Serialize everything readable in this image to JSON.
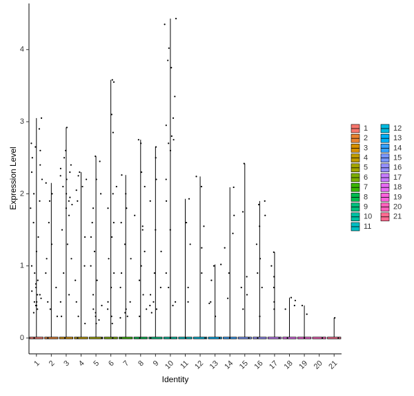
{
  "chart_data": {
    "type": "violin",
    "x_label": "Identity",
    "y_label": "Expression Level",
    "categories": [
      "1",
      "2",
      "3",
      "4",
      "5",
      "6",
      "7",
      "8",
      "9",
      "10",
      "11",
      "12",
      "13",
      "14",
      "15",
      "16",
      "17",
      "18",
      "19",
      "20",
      "21"
    ],
    "series": [
      {
        "name": "1",
        "color": "#F8766D",
        "values": [
          3.05,
          2.9,
          2.7,
          2.65,
          2.6,
          2.5,
          2.4,
          2.3,
          2.2,
          2.0,
          1.9,
          1.8,
          1.6,
          1.4,
          1.2,
          1.0,
          0.9,
          0.8,
          0.75,
          0.7,
          0.65,
          0.6,
          0.55,
          0.5,
          0.45,
          0.4,
          0.35,
          0.6,
          0.5,
          0.45,
          0
        ]
      },
      {
        "name": "2",
        "color": "#EA8331",
        "values": [
          2.15,
          2.0,
          1.9,
          1.6,
          1.3,
          1.1,
          0.9,
          0.7,
          0.5,
          0.4,
          0.3,
          0
        ]
      },
      {
        "name": "3",
        "color": "#D89000",
        "values": [
          2.92,
          2.6,
          2.5,
          2.4,
          2.35,
          2.3,
          2.25,
          2.2,
          2.1,
          2.0,
          1.95,
          1.9,
          1.85,
          1.8,
          1.7,
          1.5,
          1.3,
          1.1,
          0.9,
          0.6,
          0.5,
          0.3,
          0
        ]
      },
      {
        "name": "4",
        "color": "#C09B00",
        "values": [
          2.3,
          2.25,
          2.2,
          2.1,
          2.05,
          1.9,
          1.4,
          1.0,
          0.8,
          0.5,
          0.3,
          0.2,
          0
        ]
      },
      {
        "name": "5",
        "color": "#A3A500",
        "values": [
          2.52,
          2.45,
          2.2,
          2.0,
          1.8,
          1.6,
          1.4,
          1.2,
          1.0,
          0.8,
          0.6,
          0.45,
          0.4,
          0.35,
          0.3,
          0.25,
          0.2,
          0
        ]
      },
      {
        "name": "6",
        "color": "#7CAE00",
        "values": [
          3.58,
          3.55,
          3.1,
          2.85,
          2.1,
          2.0,
          1.8,
          1.6,
          1.4,
          1.1,
          0.9,
          0.7,
          0.5,
          0.4,
          0.3,
          0.2,
          0
        ]
      },
      {
        "name": "7",
        "color": "#39B600",
        "values": [
          2.26,
          2.0,
          1.8,
          1.6,
          1.3,
          1.1,
          0.9,
          0.7,
          0.5,
          0.4,
          0.35,
          0.3,
          0.28,
          0
        ]
      },
      {
        "name": "8",
        "color": "#00BB4E",
        "values": [
          2.75,
          2.7,
          2.3,
          2.1,
          1.7,
          1.55,
          1.5,
          1.2,
          1.0,
          0.8,
          0.6,
          0.4,
          0.3,
          0
        ]
      },
      {
        "name": "9",
        "color": "#00BF7D",
        "values": [
          2.65,
          2.5,
          2.2,
          1.9,
          1.5,
          1.2,
          0.9,
          0.7,
          0.6,
          0.5,
          0.45,
          0.4,
          0.35,
          0
        ]
      },
      {
        "name": "10",
        "color": "#00C1A3",
        "values": [
          4.43,
          4.35,
          4.02,
          3.85,
          3.75,
          3.35,
          3.05,
          2.95,
          2.8,
          2.75,
          2.7,
          2.6,
          2.2,
          1.9,
          1.5,
          0.9,
          0.7,
          0.5,
          0.45,
          0
        ]
      },
      {
        "name": "11",
        "color": "#00BFC4",
        "values": [
          1.93,
          1.6,
          1.3,
          0.7,
          0.5,
          0
        ]
      },
      {
        "name": "12",
        "color": "#00BAE0",
        "values": [
          2.24,
          2.1,
          1.55,
          1.25,
          0.9,
          0
        ]
      },
      {
        "name": "13",
        "color": "#00B0F6",
        "values": [
          1.02,
          1.0,
          0.8,
          0.5,
          0.48,
          0.3,
          0
        ]
      },
      {
        "name": "14",
        "color": "#35A2FF",
        "values": [
          2.09,
          1.7,
          1.45,
          1.25,
          0.9,
          0.55,
          0
        ]
      },
      {
        "name": "15",
        "color": "#7997FF",
        "values": [
          2.42,
          1.75,
          0.85,
          0.7,
          0.4,
          0.6,
          0
        ]
      },
      {
        "name": "16",
        "color": "#9590FF",
        "values": [
          1.9,
          1.85,
          1.7,
          1.55,
          1.3,
          1.1,
          0.9,
          0.7,
          0.3,
          0
        ]
      },
      {
        "name": "17",
        "color": "#C77CFF",
        "values": [
          1.19,
          1.0,
          0.85,
          0.7,
          0.5,
          0.4,
          0
        ]
      },
      {
        "name": "18",
        "color": "#E76BF3",
        "values": [
          0.56,
          0.52,
          0.45,
          0.4,
          0
        ]
      },
      {
        "name": "19",
        "color": "#FA62DB",
        "values": [
          0.45,
          0.33,
          0
        ]
      },
      {
        "name": "20",
        "color": "#FF62BC",
        "values": [
          0
        ]
      },
      {
        "name": "21",
        "color": "#FF6C91",
        "values": [
          0.28,
          0
        ]
      }
    ],
    "ylim": [
      -0.22,
      4.64
    ],
    "yticks": [
      0,
      1,
      2,
      3,
      4
    ],
    "grid": false
  }
}
